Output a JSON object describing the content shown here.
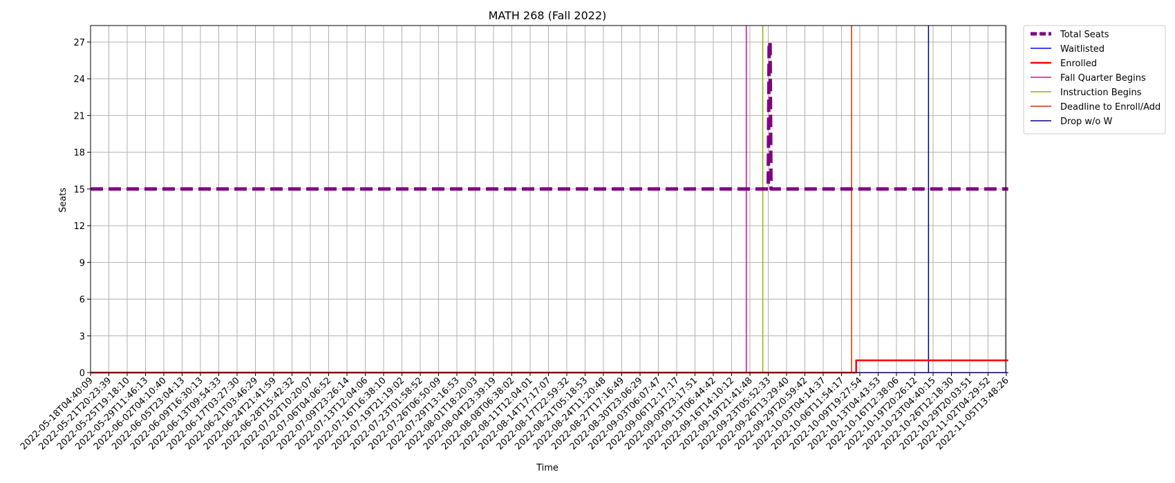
{
  "chart_data": {
    "type": "line",
    "title": "MATH 268 (Fall 2022)",
    "xlabel": "Time",
    "ylabel": "Seats",
    "ylim": [
      0,
      28.35
    ],
    "yticks": [
      0,
      3,
      6,
      9,
      12,
      15,
      18,
      21,
      24,
      27
    ],
    "grid": true,
    "legend_position": "outside-top-right",
    "x_tick_labels": [
      "2022-05-18T04:40:09",
      "2022-05-21T20:23:39",
      "2022-05-25T19:18:10",
      "2022-05-29T11:46:13",
      "2022-06-02T04:10:40",
      "2022-06-05T23:04:13",
      "2022-06-09T16:30:13",
      "2022-06-13T09:54:33",
      "2022-06-17T03:27:30",
      "2022-06-21T03:46:29",
      "2022-06-24T21:41:59",
      "2022-06-28T15:42:32",
      "2022-07-02T10:20:07",
      "2022-07-06T04:06:52",
      "2022-07-09T23:26:14",
      "2022-07-13T12:04:06",
      "2022-07-16T16:38:10",
      "2022-07-19T21:19:02",
      "2022-07-23T01:58:52",
      "2022-07-26T06:50:09",
      "2022-07-29T13:16:53",
      "2022-08-01T18:20:03",
      "2022-08-04T23:39:19",
      "2022-08-08T06:38:02",
      "2022-08-11T12:04:01",
      "2022-08-14T17:17:07",
      "2022-08-17T22:59:32",
      "2022-08-21T05:18:53",
      "2022-08-24T11:20:48",
      "2022-08-27T17:16:49",
      "2022-08-30T23:06:29",
      "2022-09-03T06:07:47",
      "2022-09-06T12:17:17",
      "2022-09-09T23:17:51",
      "2022-09-13T06:44:42",
      "2022-09-16T14:10:12",
      "2022-09-19T21:41:48",
      "2022-09-23T05:52:33",
      "2022-09-26T13:29:40",
      "2022-09-29T20:59:42",
      "2022-10-03T04:14:37",
      "2022-10-06T11:54:17",
      "2022-10-09T19:27:54",
      "2022-10-13T04:43:53",
      "2022-10-16T12:38:06",
      "2022-10-19T20:26:12",
      "2022-10-23T04:40:15",
      "2022-10-26T12:18:30",
      "2022-10-29T20:03:51",
      "2022-11-02T04:29:52",
      "2022-11-05T13:48:26"
    ],
    "series": [
      {
        "name": "Total Seats",
        "color": "#800080",
        "style": "dashed",
        "x_index": [
          0,
          37.0,
          37.05,
          37.1,
          37.15,
          37.2,
          37.25,
          50.1
        ],
        "values": [
          15,
          15,
          27,
          27,
          15,
          15,
          15,
          15
        ]
      },
      {
        "name": "Waitlisted",
        "color": "#0000ff",
        "style": "solid",
        "x_index": [
          0,
          50.1
        ],
        "values": [
          0,
          0
        ]
      },
      {
        "name": "Enrolled",
        "color": "#ff0000",
        "style": "solid",
        "x_index": [
          0,
          41.75,
          41.75,
          41.8,
          41.8,
          50.1
        ],
        "values": [
          0,
          0,
          0,
          0,
          1,
          1
        ]
      }
    ],
    "events": [
      {
        "name": "Fall Quarter Begins",
        "color": "#e6009e",
        "x_index": 35.8
      },
      {
        "name": "Instruction Begins",
        "color": "#8db600",
        "x_index": 36.7
      },
      {
        "name": "Deadline to Enroll/Add",
        "color": "#cc3300",
        "x_index": 41.55
      },
      {
        "name": "Drop w/o W",
        "color": "#000080",
        "x_index": 45.75
      }
    ]
  }
}
